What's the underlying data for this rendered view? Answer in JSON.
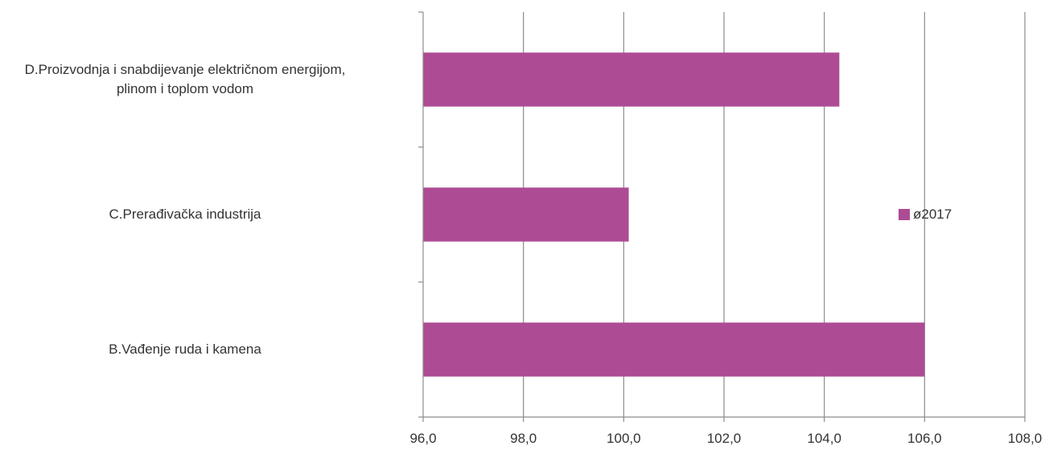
{
  "chart_data": {
    "type": "bar",
    "orientation": "horizontal",
    "categories": [
      "D.Proizvodnja i snabdijevanje električnom energijom, plinom i toplom vodom",
      "C.Prerađivačka industrija",
      "B.Vađenje ruda i kamena"
    ],
    "category_lines": [
      [
        "D.Proizvodnja i snabdijevanje električnom energijom,",
        "plinom i toplom vodom"
      ],
      [
        "C.Prerađivačka industrija"
      ],
      [
        "B.Vađenje ruda i kamena"
      ]
    ],
    "series": [
      {
        "name": "ø2017",
        "values": [
          104.3,
          100.1,
          106.0
        ],
        "color": "#ad4b94"
      }
    ],
    "xlim": [
      96.0,
      108.0
    ],
    "x_ticks": [
      "96,0",
      "98,0",
      "100,0",
      "102,0",
      "104,0",
      "106,0",
      "108,0"
    ],
    "grid": "vertical",
    "legend_position": "right"
  }
}
